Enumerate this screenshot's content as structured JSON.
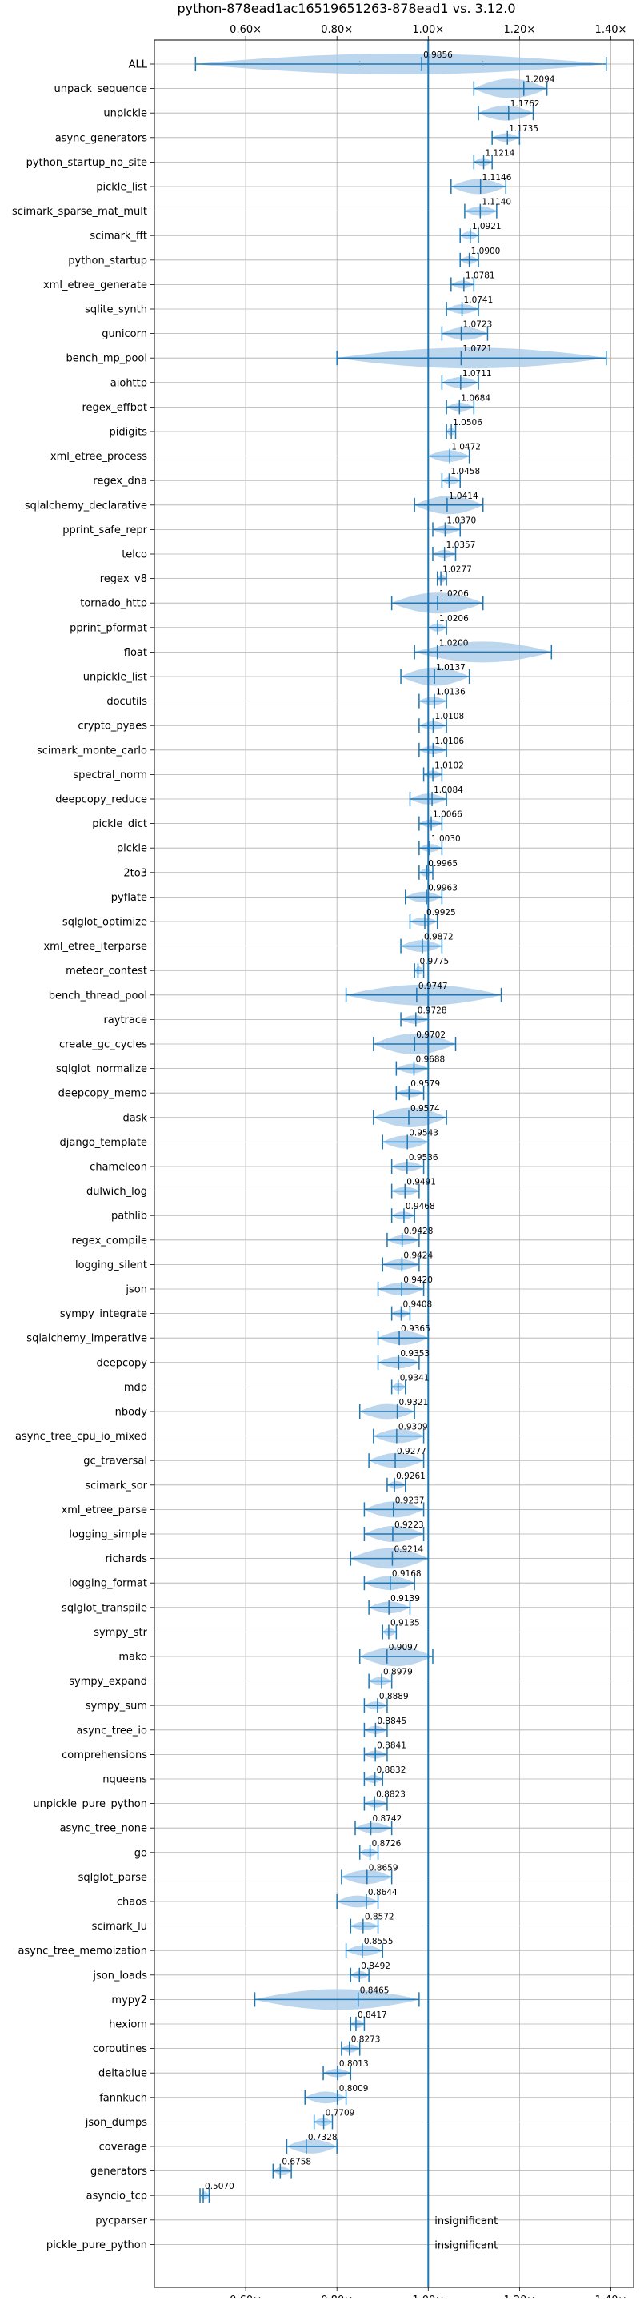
{
  "chart_data": {
    "type": "violin",
    "title": "python-878ead1ac16519651263-878ead1 vs. 3.12.0",
    "xlabel": "",
    "ylabel": "",
    "xlim": [
      0.4,
      1.45
    ],
    "xticks": [
      "0.60×",
      "0.80×",
      "1.00×",
      "1.20×",
      "1.40×"
    ],
    "xtick_values": [
      0.6,
      0.8,
      1.0,
      1.2,
      1.4
    ],
    "reference_line": 1.0,
    "grid": true,
    "color": "#1f77b4",
    "violin_color": "#a6c8e8",
    "series": [
      {
        "name": "ALL",
        "label": "0.9856",
        "value": 0.9856,
        "min": 0.49,
        "max": 1.39,
        "q1": 0.85,
        "q3": 1.12
      },
      {
        "name": "unpack_sequence",
        "label": "1.2094",
        "value": 1.2094,
        "min": 1.1,
        "max": 1.26
      },
      {
        "name": "unpickle",
        "label": "1.1762",
        "value": 1.1762,
        "min": 1.11,
        "max": 1.23
      },
      {
        "name": "async_generators",
        "label": "1.1735",
        "value": 1.1735,
        "min": 1.14,
        "max": 1.2
      },
      {
        "name": "python_startup_no_site",
        "label": "1.1214",
        "value": 1.1214,
        "min": 1.1,
        "max": 1.14
      },
      {
        "name": "pickle_list",
        "label": "1.1146",
        "value": 1.1146,
        "min": 1.05,
        "max": 1.17
      },
      {
        "name": "scimark_sparse_mat_mult",
        "label": "1.1140",
        "value": 1.114,
        "min": 1.08,
        "max": 1.15
      },
      {
        "name": "scimark_fft",
        "label": "1.0921",
        "value": 1.0921,
        "min": 1.07,
        "max": 1.11
      },
      {
        "name": "python_startup",
        "label": "1.0900",
        "value": 1.09,
        "min": 1.07,
        "max": 1.11
      },
      {
        "name": "xml_etree_generate",
        "label": "1.0781",
        "value": 1.0781,
        "min": 1.05,
        "max": 1.1
      },
      {
        "name": "sqlite_synth",
        "label": "1.0741",
        "value": 1.0741,
        "min": 1.04,
        "max": 1.11
      },
      {
        "name": "gunicorn",
        "label": "1.0723",
        "value": 1.0723,
        "min": 1.03,
        "max": 1.13
      },
      {
        "name": "bench_mp_pool",
        "label": "1.0721",
        "value": 1.0721,
        "min": 0.8,
        "max": 1.39
      },
      {
        "name": "aiohttp",
        "label": "1.0711",
        "value": 1.0711,
        "min": 1.03,
        "max": 1.11
      },
      {
        "name": "regex_effbot",
        "label": "1.0684",
        "value": 1.0684,
        "min": 1.04,
        "max": 1.1
      },
      {
        "name": "pidigits",
        "label": "1.0506",
        "value": 1.0506,
        "min": 1.04,
        "max": 1.06
      },
      {
        "name": "xml_etree_process",
        "label": "1.0472",
        "value": 1.0472,
        "min": 1.0,
        "max": 1.09
      },
      {
        "name": "regex_dna",
        "label": "1.0458",
        "value": 1.0458,
        "min": 1.03,
        "max": 1.07
      },
      {
        "name": "sqlalchemy_declarative",
        "label": "1.0414",
        "value": 1.0414,
        "min": 0.97,
        "max": 1.12
      },
      {
        "name": "pprint_safe_repr",
        "label": "1.0370",
        "value": 1.037,
        "min": 1.01,
        "max": 1.07
      },
      {
        "name": "telco",
        "label": "1.0357",
        "value": 1.0357,
        "min": 1.01,
        "max": 1.06
      },
      {
        "name": "regex_v8",
        "label": "1.0277",
        "value": 1.0277,
        "min": 1.02,
        "max": 1.04
      },
      {
        "name": "tornado_http",
        "label": "1.0206",
        "value": 1.0206,
        "min": 0.92,
        "max": 1.12
      },
      {
        "name": "pprint_pformat",
        "label": "1.0206",
        "value": 1.0206,
        "min": 1.0,
        "max": 1.04
      },
      {
        "name": "float",
        "label": "1.0200",
        "value": 1.02,
        "min": 0.97,
        "max": 1.27
      },
      {
        "name": "unpickle_list",
        "label": "1.0137",
        "value": 1.0137,
        "min": 0.94,
        "max": 1.09
      },
      {
        "name": "docutils",
        "label": "1.0136",
        "value": 1.0136,
        "min": 0.98,
        "max": 1.04
      },
      {
        "name": "crypto_pyaes",
        "label": "1.0108",
        "value": 1.0108,
        "min": 0.98,
        "max": 1.04
      },
      {
        "name": "scimark_monte_carlo",
        "label": "1.0106",
        "value": 1.0106,
        "min": 0.98,
        "max": 1.04
      },
      {
        "name": "spectral_norm",
        "label": "1.0102",
        "value": 1.0102,
        "min": 0.99,
        "max": 1.03
      },
      {
        "name": "deepcopy_reduce",
        "label": "1.0084",
        "value": 1.0084,
        "min": 0.96,
        "max": 1.04
      },
      {
        "name": "pickle_dict",
        "label": "1.0066",
        "value": 1.0066,
        "min": 0.98,
        "max": 1.03
      },
      {
        "name": "pickle",
        "label": "1.0030",
        "value": 1.003,
        "min": 0.98,
        "max": 1.03
      },
      {
        "name": "2to3",
        "label": "0.9965",
        "value": 0.9965,
        "min": 0.98,
        "max": 1.01
      },
      {
        "name": "pyflate",
        "label": "0.9963",
        "value": 0.9963,
        "min": 0.95,
        "max": 1.03
      },
      {
        "name": "sqlglot_optimize",
        "label": "0.9925",
        "value": 0.9925,
        "min": 0.96,
        "max": 1.02
      },
      {
        "name": "xml_etree_iterparse",
        "label": "0.9872",
        "value": 0.9872,
        "min": 0.94,
        "max": 1.03
      },
      {
        "name": "meteor_contest",
        "label": "0.9775",
        "value": 0.9775,
        "min": 0.97,
        "max": 0.99
      },
      {
        "name": "bench_thread_pool",
        "label": "0.9747",
        "value": 0.9747,
        "min": 0.82,
        "max": 1.16
      },
      {
        "name": "raytrace",
        "label": "0.9728",
        "value": 0.9728,
        "min": 0.94,
        "max": 1.0
      },
      {
        "name": "create_gc_cycles",
        "label": "0.9702",
        "value": 0.9702,
        "min": 0.88,
        "max": 1.06
      },
      {
        "name": "sqlglot_normalize",
        "label": "0.9688",
        "value": 0.9688,
        "min": 0.93,
        "max": 1.0
      },
      {
        "name": "deepcopy_memo",
        "label": "0.9579",
        "value": 0.9579,
        "min": 0.93,
        "max": 0.99
      },
      {
        "name": "dask",
        "label": "0.9574",
        "value": 0.9574,
        "min": 0.88,
        "max": 1.04
      },
      {
        "name": "django_template",
        "label": "0.9543",
        "value": 0.9543,
        "min": 0.9,
        "max": 1.0
      },
      {
        "name": "chameleon",
        "label": "0.9536",
        "value": 0.9536,
        "min": 0.92,
        "max": 0.99
      },
      {
        "name": "dulwich_log",
        "label": "0.9491",
        "value": 0.9491,
        "min": 0.92,
        "max": 0.98
      },
      {
        "name": "pathlib",
        "label": "0.9468",
        "value": 0.9468,
        "min": 0.92,
        "max": 0.97
      },
      {
        "name": "regex_compile",
        "label": "0.9428",
        "value": 0.9428,
        "min": 0.91,
        "max": 0.98
      },
      {
        "name": "logging_silent",
        "label": "0.9424",
        "value": 0.9424,
        "min": 0.9,
        "max": 0.98
      },
      {
        "name": "json",
        "label": "0.9420",
        "value": 0.942,
        "min": 0.89,
        "max": 0.99
      },
      {
        "name": "sympy_integrate",
        "label": "0.9408",
        "value": 0.9408,
        "min": 0.92,
        "max": 0.96
      },
      {
        "name": "sqlalchemy_imperative",
        "label": "0.9365",
        "value": 0.9365,
        "min": 0.89,
        "max": 1.0
      },
      {
        "name": "deepcopy",
        "label": "0.9353",
        "value": 0.9353,
        "min": 0.89,
        "max": 0.98
      },
      {
        "name": "mdp",
        "label": "0.9341",
        "value": 0.9341,
        "min": 0.92,
        "max": 0.95
      },
      {
        "name": "nbody",
        "label": "0.9321",
        "value": 0.9321,
        "min": 0.85,
        "max": 0.97
      },
      {
        "name": "async_tree_cpu_io_mixed",
        "label": "0.9309",
        "value": 0.9309,
        "min": 0.88,
        "max": 0.99
      },
      {
        "name": "gc_traversal",
        "label": "0.9277",
        "value": 0.9277,
        "min": 0.87,
        "max": 0.99
      },
      {
        "name": "scimark_sor",
        "label": "0.9261",
        "value": 0.9261,
        "min": 0.91,
        "max": 0.95
      },
      {
        "name": "xml_etree_parse",
        "label": "0.9237",
        "value": 0.9237,
        "min": 0.86,
        "max": 0.99
      },
      {
        "name": "logging_simple",
        "label": "0.9223",
        "value": 0.9223,
        "min": 0.86,
        "max": 0.99
      },
      {
        "name": "richards",
        "label": "0.9214",
        "value": 0.9214,
        "min": 0.83,
        "max": 1.0
      },
      {
        "name": "logging_format",
        "label": "0.9168",
        "value": 0.9168,
        "min": 0.86,
        "max": 0.97
      },
      {
        "name": "sqlglot_transpile",
        "label": "0.9139",
        "value": 0.9139,
        "min": 0.87,
        "max": 0.96
      },
      {
        "name": "sympy_str",
        "label": "0.9135",
        "value": 0.9135,
        "min": 0.9,
        "max": 0.93
      },
      {
        "name": "mako",
        "label": "0.9097",
        "value": 0.9097,
        "min": 0.85,
        "max": 1.01
      },
      {
        "name": "sympy_expand",
        "label": "0.8979",
        "value": 0.8979,
        "min": 0.87,
        "max": 0.92
      },
      {
        "name": "sympy_sum",
        "label": "0.8889",
        "value": 0.8889,
        "min": 0.86,
        "max": 0.91
      },
      {
        "name": "async_tree_io",
        "label": "0.8845",
        "value": 0.8845,
        "min": 0.86,
        "max": 0.91
      },
      {
        "name": "comprehensions",
        "label": "0.8841",
        "value": 0.8841,
        "min": 0.86,
        "max": 0.91
      },
      {
        "name": "nqueens",
        "label": "0.8832",
        "value": 0.8832,
        "min": 0.86,
        "max": 0.9
      },
      {
        "name": "unpickle_pure_python",
        "label": "0.8823",
        "value": 0.8823,
        "min": 0.86,
        "max": 0.91
      },
      {
        "name": "async_tree_none",
        "label": "0.8742",
        "value": 0.8742,
        "min": 0.84,
        "max": 0.92
      },
      {
        "name": "go",
        "label": "0.8726",
        "value": 0.8726,
        "min": 0.85,
        "max": 0.89
      },
      {
        "name": "sqlglot_parse",
        "label": "0.8659",
        "value": 0.8659,
        "min": 0.81,
        "max": 0.92
      },
      {
        "name": "chaos",
        "label": "0.8644",
        "value": 0.8644,
        "min": 0.8,
        "max": 0.89
      },
      {
        "name": "scimark_lu",
        "label": "0.8572",
        "value": 0.8572,
        "min": 0.83,
        "max": 0.89
      },
      {
        "name": "async_tree_memoization",
        "label": "0.8555",
        "value": 0.8555,
        "min": 0.82,
        "max": 0.9
      },
      {
        "name": "json_loads",
        "label": "0.8492",
        "value": 0.8492,
        "min": 0.83,
        "max": 0.87
      },
      {
        "name": "mypy2",
        "label": "0.8465",
        "value": 0.8465,
        "min": 0.62,
        "max": 0.98
      },
      {
        "name": "hexiom",
        "label": "0.8417",
        "value": 0.8417,
        "min": 0.83,
        "max": 0.86
      },
      {
        "name": "coroutines",
        "label": "0.8273",
        "value": 0.8273,
        "min": 0.81,
        "max": 0.85
      },
      {
        "name": "deltablue",
        "label": "0.8013",
        "value": 0.8013,
        "min": 0.77,
        "max": 0.83
      },
      {
        "name": "fannkuch",
        "label": "0.8009",
        "value": 0.8009,
        "min": 0.73,
        "max": 0.82
      },
      {
        "name": "json_dumps",
        "label": "0.7709",
        "value": 0.7709,
        "min": 0.75,
        "max": 0.79
      },
      {
        "name": "coverage",
        "label": "0.7328",
        "value": 0.7328,
        "min": 0.69,
        "max": 0.8
      },
      {
        "name": "generators",
        "label": "0.6758",
        "value": 0.6758,
        "min": 0.66,
        "max": 0.7
      },
      {
        "name": "asyncio_tcp",
        "label": "0.5070",
        "value": 0.507,
        "min": 0.5,
        "max": 0.52
      },
      {
        "name": "pycparser",
        "label": "insignificant"
      },
      {
        "name": "pickle_pure_python",
        "label": "insignificant"
      }
    ]
  }
}
